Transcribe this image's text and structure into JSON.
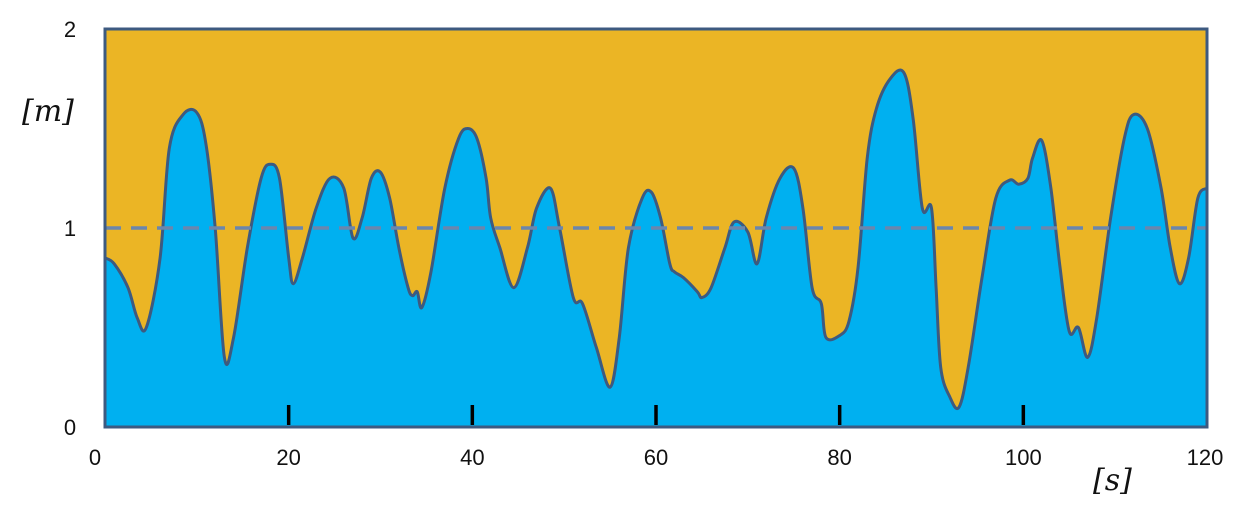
{
  "chart_data": {
    "type": "area",
    "title": "",
    "xlabel": "[s]",
    "ylabel": "[m]",
    "xlim": [
      0,
      120
    ],
    "ylim": [
      0,
      2
    ],
    "x_ticks": [
      0,
      20,
      40,
      60,
      80,
      100,
      120
    ],
    "y_ticks": [
      0,
      1,
      2
    ],
    "reference_line": {
      "y": 1,
      "style": "dashed"
    },
    "colors": {
      "fill": "#00b0f0",
      "background": "#ebb525",
      "stroke": "#3d5a80",
      "reference": "#6b86ad",
      "tick_marks": "#000000"
    },
    "series": [
      {
        "x": [
          0,
          1,
          2.5,
          3.5,
          4.5,
          6,
          7,
          8.5,
          10,
          11,
          12,
          13,
          14,
          15.5,
          17,
          18,
          19,
          20,
          20.5,
          21.5,
          23,
          24.5,
          26,
          27,
          28,
          29,
          30,
          31,
          32,
          33,
          33.5,
          34,
          34.5,
          35.5,
          37,
          38.5,
          39.5,
          40.5,
          41.5,
          42,
          43,
          44.5,
          46,
          47,
          48.5,
          49.5,
          51,
          52,
          53.5,
          55,
          56,
          57,
          58.5,
          59.5,
          60.5,
          61.5,
          62,
          63,
          64.5,
          65,
          66,
          67.5,
          68.5,
          70,
          71,
          72,
          73.5,
          75,
          76,
          77,
          78,
          78.5,
          80,
          81,
          82,
          83,
          84,
          85.5,
          87,
          88,
          89,
          90,
          90.5,
          91,
          92,
          93,
          94,
          95.5,
          97,
          98.5,
          99.5,
          100.5,
          101,
          102,
          103,
          104,
          105,
          106,
          107,
          108,
          109.5,
          111,
          112,
          113.5,
          115,
          116,
          117,
          118,
          119,
          120
        ],
        "y": [
          0.85,
          0.82,
          0.7,
          0.55,
          0.5,
          0.85,
          1.4,
          1.57,
          1.58,
          1.42,
          1.0,
          0.35,
          0.45,
          0.9,
          1.25,
          1.32,
          1.25,
          0.85,
          0.72,
          0.85,
          1.1,
          1.25,
          1.2,
          0.95,
          1.05,
          1.25,
          1.28,
          1.15,
          0.9,
          0.7,
          0.66,
          0.68,
          0.6,
          0.78,
          1.2,
          1.45,
          1.5,
          1.45,
          1.25,
          1.05,
          0.9,
          0.7,
          0.9,
          1.1,
          1.2,
          1.0,
          0.65,
          0.62,
          0.4,
          0.2,
          0.45,
          0.9,
          1.15,
          1.18,
          1.05,
          0.82,
          0.78,
          0.75,
          0.68,
          0.65,
          0.7,
          0.9,
          1.03,
          0.98,
          0.82,
          1.05,
          1.25,
          1.3,
          1.1,
          0.7,
          0.62,
          0.45,
          0.46,
          0.53,
          0.8,
          1.35,
          1.6,
          1.75,
          1.78,
          1.55,
          1.1,
          1.1,
          0.7,
          0.3,
          0.15,
          0.1,
          0.3,
          0.75,
          1.15,
          1.24,
          1.22,
          1.25,
          1.35,
          1.44,
          1.2,
          0.8,
          0.48,
          0.5,
          0.35,
          0.55,
          1.05,
          1.45,
          1.57,
          1.5,
          1.2,
          0.9,
          0.72,
          0.85,
          1.15,
          1.2
        ]
      }
    ]
  }
}
